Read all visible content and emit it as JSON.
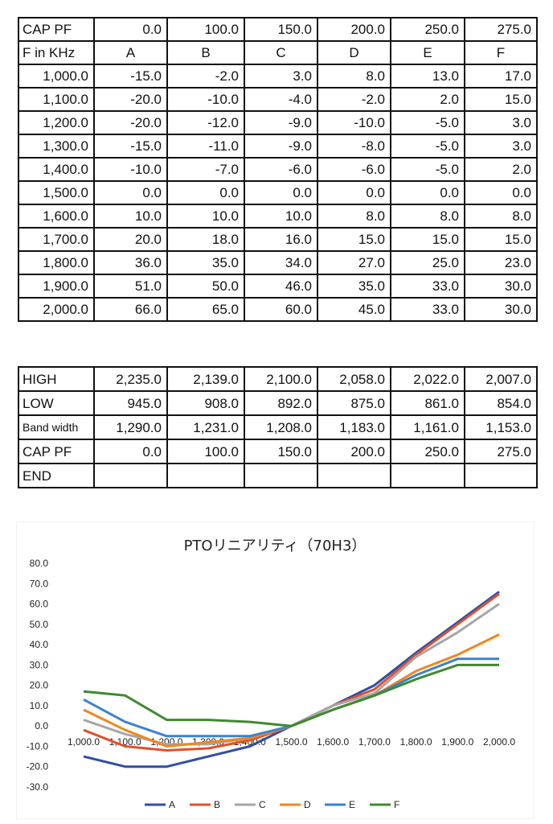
{
  "table1": {
    "cap_row": [
      "CAP PF",
      "0.0",
      "100.0",
      "150.0",
      "200.0",
      "250.0",
      "275.0"
    ],
    "header_row": [
      "F in KHz",
      "A",
      "B",
      "C",
      "D",
      "E",
      "F"
    ],
    "rows": [
      [
        "1,000.0",
        "-15.0",
        "-2.0",
        "3.0",
        "8.0",
        "13.0",
        "17.0"
      ],
      [
        "1,100.0",
        "-20.0",
        "-10.0",
        "-4.0",
        "-2.0",
        "2.0",
        "15.0"
      ],
      [
        "1,200.0",
        "-20.0",
        "-12.0",
        "-9.0",
        "-10.0",
        "-5.0",
        "3.0"
      ],
      [
        "1,300.0",
        "-15.0",
        "-11.0",
        "-9.0",
        "-8.0",
        "-5.0",
        "3.0"
      ],
      [
        "1,400.0",
        "-10.0",
        "-7.0",
        "-6.0",
        "-6.0",
        "-5.0",
        "2.0"
      ],
      [
        "1,500.0",
        "0.0",
        "0.0",
        "0.0",
        "0.0",
        "0.0",
        "0.0"
      ],
      [
        "1,600.0",
        "10.0",
        "10.0",
        "10.0",
        "8.0",
        "8.0",
        "8.0"
      ],
      [
        "1,700.0",
        "20.0",
        "18.0",
        "16.0",
        "15.0",
        "15.0",
        "15.0"
      ],
      [
        "1,800.0",
        "36.0",
        "35.0",
        "34.0",
        "27.0",
        "25.0",
        "23.0"
      ],
      [
        "1,900.0",
        "51.0",
        "50.0",
        "46.0",
        "35.0",
        "33.0",
        "30.0"
      ],
      [
        "2,000.0",
        "66.0",
        "65.0",
        "60.0",
        "45.0",
        "33.0",
        "30.0"
      ]
    ]
  },
  "table2": {
    "rows": [
      [
        "HIGH",
        "2,235.0",
        "2,139.0",
        "2,100.0",
        "2,058.0",
        "2,022.0",
        "2,007.0"
      ],
      [
        "LOW",
        "945.0",
        "908.0",
        "892.0",
        "875.0",
        "861.0",
        "854.0"
      ],
      [
        "Band width",
        "1,290.0",
        "1,231.0",
        "1,208.0",
        "1,183.0",
        "1,161.0",
        "1,153.0"
      ],
      [
        "CAP PF",
        "0.0",
        "100.0",
        "150.0",
        "200.0",
        "250.0",
        "275.0"
      ],
      [
        "END",
        "",
        "",
        "",
        "",
        "",
        ""
      ]
    ]
  },
  "chart_data": {
    "type": "line",
    "title": "PTOリニアリティ（70H3）",
    "xlabel": "",
    "ylabel": "",
    "categories": [
      "1,000.0",
      "1,100.0",
      "1,200.0",
      "1,300.0",
      "1,400.0",
      "1,500.0",
      "1,600.0",
      "1,700.0",
      "1,800.0",
      "1,900.0",
      "2,000.0"
    ],
    "ylim": [
      -30,
      80
    ],
    "yticks": [
      "80.0",
      "70.0",
      "60.0",
      "50.0",
      "40.0",
      "30.0",
      "20.0",
      "10.0",
      "0.0",
      "-10.0",
      "-20.0",
      "-30.0"
    ],
    "legend_position": "bottom",
    "series": [
      {
        "name": "A",
        "color": "#2f4ea8",
        "values": [
          -15,
          -20,
          -20,
          -15,
          -10,
          0,
          10,
          20,
          36,
          51,
          66
        ]
      },
      {
        "name": "B",
        "color": "#e0502a",
        "values": [
          -2,
          -10,
          -12,
          -11,
          -7,
          0,
          10,
          18,
          35,
          50,
          65
        ]
      },
      {
        "name": "C",
        "color": "#a6a6a6",
        "values": [
          3,
          -4,
          -9,
          -9,
          -6,
          0,
          10,
          16,
          34,
          46,
          60
        ]
      },
      {
        "name": "D",
        "color": "#f0871f",
        "values": [
          8,
          -2,
          -10,
          -8,
          -6,
          0,
          8,
          15,
          27,
          35,
          45
        ]
      },
      {
        "name": "E",
        "color": "#3d82d0",
        "values": [
          13,
          2,
          -5,
          -5,
          -5,
          0,
          8,
          15,
          25,
          33,
          33
        ]
      },
      {
        "name": "F",
        "color": "#3f8a2e",
        "values": [
          17,
          15,
          3,
          3,
          2,
          0,
          8,
          15,
          23,
          30,
          30
        ]
      }
    ]
  }
}
